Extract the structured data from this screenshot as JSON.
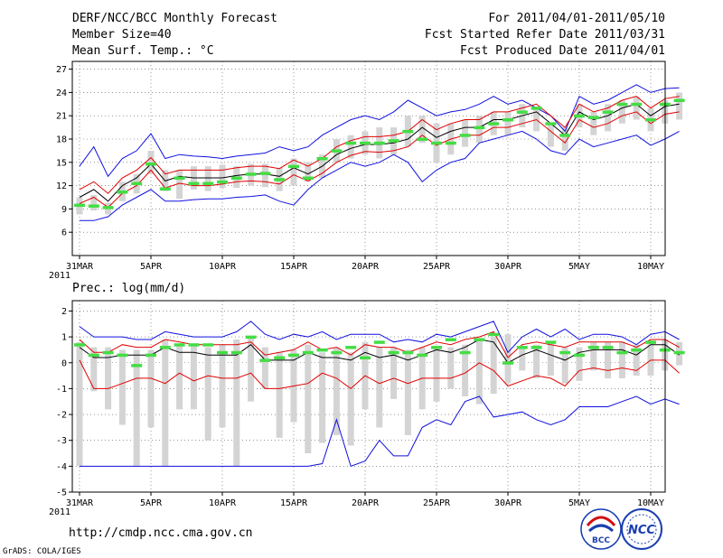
{
  "header": {
    "title": "DERF/NCC/BCC Monthly Forecast",
    "member": "Member Size=40",
    "variable": "Mean Surf. Temp.: °C",
    "period": "For 2011/04/01-2011/05/10",
    "refer": "Fcst Started Refer Date 2011/03/31",
    "produced": "Fcst Produced Date 2011/04/01"
  },
  "footer": {
    "url": "http://cmdp.ncc.cma.gov.cn",
    "grads": "GrADS: COLA/IGES",
    "logo1_text": "BCC",
    "logo2_text": "NCC"
  },
  "colors": {
    "envelope": "#1010e0",
    "spread": "#e00000",
    "mean": "#000000",
    "bar": "#d4d4d4",
    "marker": "#44dd44"
  },
  "chart_data": [
    {
      "type": "line",
      "title": "Mean Surf. Temp.: °C",
      "x_ticks": [
        {
          "i": 0,
          "label": "31MAR"
        },
        {
          "i": 5,
          "label": "5APR"
        },
        {
          "i": 10,
          "label": "10APR"
        },
        {
          "i": 15,
          "label": "15APR"
        },
        {
          "i": 20,
          "label": "20APR"
        },
        {
          "i": 25,
          "label": "25APR"
        },
        {
          "i": 30,
          "label": "30APR"
        },
        {
          "i": 35,
          "label": "5MAY"
        },
        {
          "i": 40,
          "label": "10MAY"
        }
      ],
      "year_label": "2011",
      "xlim": [
        0,
        40
      ],
      "ylim": [
        3,
        28
      ],
      "y_ticks": [
        6,
        9,
        12,
        15,
        18,
        21,
        24,
        27
      ],
      "series": {
        "max": [
          14.5,
          17.0,
          13.2,
          15.5,
          16.5,
          18.7,
          15.5,
          16.0,
          15.8,
          15.7,
          15.5,
          15.8,
          16.0,
          16.2,
          17.0,
          16.5,
          17.0,
          18.5,
          19.5,
          20.5,
          21.0,
          20.5,
          21.5,
          23.0,
          22.0,
          21.0,
          21.5,
          21.8,
          22.5,
          23.5,
          22.5,
          23.0,
          22.0,
          21.0,
          19.0,
          23.5,
          22.5,
          23.0,
          24.0,
          25.0,
          24.0,
          24.5,
          24.6
        ],
        "upper": [
          11.5,
          12.5,
          11.0,
          13.0,
          14.0,
          15.6,
          13.5,
          14.0,
          14.0,
          14.0,
          14.0,
          14.3,
          14.5,
          14.5,
          14.2,
          15.3,
          14.5,
          15.5,
          17.0,
          17.8,
          18.3,
          18.3,
          18.5,
          19.0,
          20.5,
          19.2,
          20.0,
          20.5,
          20.5,
          21.5,
          21.5,
          22.0,
          22.5,
          21.0,
          19.5,
          22.5,
          21.5,
          22.0,
          23.0,
          23.5,
          22.0,
          23.2,
          23.5
        ],
        "mean": [
          10.5,
          11.5,
          10.0,
          12.0,
          13.0,
          14.8,
          12.6,
          13.2,
          13.0,
          13.0,
          13.0,
          13.3,
          13.5,
          13.5,
          13.2,
          14.3,
          13.5,
          14.5,
          16.0,
          16.8,
          17.3,
          17.3,
          17.5,
          18.0,
          19.5,
          18.2,
          19.0,
          19.5,
          19.5,
          20.5,
          20.5,
          21.0,
          21.5,
          20.0,
          18.5,
          21.5,
          20.5,
          21.0,
          22.0,
          22.5,
          21.0,
          22.2,
          22.5
        ],
        "lower": [
          9.7,
          10.5,
          9.2,
          11.0,
          12.0,
          14.0,
          11.7,
          12.3,
          12.0,
          12.0,
          12.2,
          12.5,
          12.6,
          12.5,
          12.2,
          13.4,
          12.6,
          13.6,
          15.0,
          15.9,
          16.4,
          16.3,
          16.5,
          17.0,
          18.5,
          17.2,
          18.0,
          18.5,
          18.5,
          19.5,
          19.5,
          20.0,
          20.5,
          19.0,
          17.5,
          20.5,
          19.5,
          20.0,
          21.0,
          21.5,
          20.0,
          21.2,
          21.5
        ],
        "min": [
          7.5,
          7.5,
          8.0,
          9.5,
          10.5,
          11.5,
          10.0,
          10.0,
          10.2,
          10.3,
          10.3,
          10.5,
          10.6,
          10.8,
          10.0,
          9.5,
          11.5,
          13.0,
          14.0,
          15.0,
          14.5,
          15.0,
          16.0,
          15.0,
          12.5,
          14.0,
          15.0,
          15.5,
          17.5,
          18.0,
          18.5,
          19.0,
          18.0,
          16.5,
          16.0,
          18.0,
          17.0,
          17.5,
          18.0,
          18.5,
          17.2,
          18.0,
          19.0
        ]
      },
      "bars": [
        {
          "i": 0,
          "low": 8.3,
          "high": 10.5
        },
        {
          "i": 1,
          "low": 8.8,
          "high": 10.8
        },
        {
          "i": 2,
          "low": 8.3,
          "high": 9.8
        },
        {
          "i": 3,
          "low": 10.0,
          "high": 12.5
        },
        {
          "i": 4,
          "low": 11.0,
          "high": 13.5
        },
        {
          "i": 5,
          "low": 13.5,
          "high": 16.5
        },
        {
          "i": 6,
          "low": 11.3,
          "high": 14.0
        },
        {
          "i": 7,
          "low": 10.3,
          "high": 14.0
        },
        {
          "i": 8,
          "low": 11.5,
          "high": 14.5
        },
        {
          "i": 9,
          "low": 11.3,
          "high": 14.5
        },
        {
          "i": 10,
          "low": 11.7,
          "high": 14.7
        },
        {
          "i": 11,
          "low": 11.7,
          "high": 14.5
        },
        {
          "i": 12,
          "low": 12.0,
          "high": 14.8
        },
        {
          "i": 13,
          "low": 11.8,
          "high": 14.8
        },
        {
          "i": 14,
          "low": 11.3,
          "high": 14.3
        },
        {
          "i": 15,
          "low": 12.0,
          "high": 15.5
        },
        {
          "i": 16,
          "low": 12.5,
          "high": 15.0
        },
        {
          "i": 17,
          "low": 13.0,
          "high": 16.0
        },
        {
          "i": 18,
          "low": 15.0,
          "high": 18.0
        },
        {
          "i": 19,
          "low": 15.5,
          "high": 18.5
        },
        {
          "i": 20,
          "low": 16.0,
          "high": 19.0
        },
        {
          "i": 21,
          "low": 15.5,
          "high": 19.5
        },
        {
          "i": 22,
          "low": 16.0,
          "high": 19.5
        },
        {
          "i": 23,
          "low": 17.0,
          "high": 21.0
        },
        {
          "i": 24,
          "low": 17.5,
          "high": 21.0
        },
        {
          "i": 25,
          "low": 15.0,
          "high": 20.0
        },
        {
          "i": 26,
          "low": 16.0,
          "high": 20.0
        },
        {
          "i": 27,
          "low": 17.0,
          "high": 20.5
        },
        {
          "i": 28,
          "low": 17.5,
          "high": 21.0
        },
        {
          "i": 29,
          "low": 18.5,
          "high": 21.5
        },
        {
          "i": 30,
          "low": 18.5,
          "high": 21.5
        },
        {
          "i": 31,
          "low": 19.5,
          "high": 22.5
        },
        {
          "i": 32,
          "low": 19.0,
          "high": 22.0
        },
        {
          "i": 33,
          "low": 17.0,
          "high": 20.0
        },
        {
          "i": 34,
          "low": 16.5,
          "high": 19.5
        },
        {
          "i": 35,
          "low": 19.5,
          "high": 22.5
        },
        {
          "i": 36,
          "low": 18.5,
          "high": 21.5
        },
        {
          "i": 37,
          "low": 19.0,
          "high": 22.5
        },
        {
          "i": 38,
          "low": 20.0,
          "high": 23.0
        },
        {
          "i": 39,
          "low": 20.5,
          "high": 23.5
        },
        {
          "i": 40,
          "low": 19.0,
          "high": 22.0
        },
        {
          "i": 41,
          "low": 20.0,
          "high": 23.0
        },
        {
          "i": 42,
          "low": 20.5,
          "high": 24.0
        }
      ],
      "markers": [
        9.5,
        9.4,
        9.2,
        11.2,
        12.3,
        14.8,
        11.6,
        13.0,
        12.3,
        12.3,
        12.5,
        13.0,
        13.5,
        13.6,
        12.8,
        14.5,
        13.0,
        15.5,
        16.5,
        17.5,
        17.5,
        17.5,
        17.8,
        19.0,
        18.0,
        17.5,
        17.5,
        18.5,
        19.5,
        20.0,
        20.5,
        21.5,
        22.0,
        20.0,
        18.5,
        21.0,
        20.8,
        21.5,
        22.5,
        22.5,
        20.5,
        22.5,
        23.0
      ]
    },
    {
      "type": "line",
      "title": "Prec.: log(mm/d)",
      "x_ticks": [
        {
          "i": 0,
          "label": "31MAR"
        },
        {
          "i": 5,
          "label": "5APR"
        },
        {
          "i": 10,
          "label": "10APR"
        },
        {
          "i": 15,
          "label": "15APR"
        },
        {
          "i": 20,
          "label": "20APR"
        },
        {
          "i": 25,
          "label": "25APR"
        },
        {
          "i": 30,
          "label": "30APR"
        },
        {
          "i": 35,
          "label": "5MAY"
        },
        {
          "i": 40,
          "label": "10MAY"
        }
      ],
      "year_label": "2011",
      "xlim": [
        0,
        40
      ],
      "ylim": [
        -5,
        2.4
      ],
      "y_ticks": [
        -5,
        -4,
        -3,
        -2,
        -1,
        0,
        1,
        2
      ],
      "series": {
        "max": [
          1.4,
          1.0,
          1.0,
          1.0,
          0.9,
          0.9,
          1.2,
          1.1,
          1.0,
          1.0,
          1.0,
          1.2,
          1.6,
          1.1,
          0.9,
          1.1,
          1.0,
          1.2,
          0.9,
          1.1,
          1.1,
          1.1,
          0.8,
          0.9,
          0.8,
          1.1,
          1.0,
          1.2,
          1.4,
          1.6,
          0.4,
          1.0,
          1.3,
          1.0,
          1.3,
          0.9,
          1.1,
          1.1,
          1.0,
          0.7,
          1.1,
          1.2,
          0.9
        ],
        "upper": [
          0.9,
          0.4,
          0.4,
          0.7,
          0.6,
          0.6,
          0.9,
          0.8,
          0.7,
          0.7,
          0.7,
          0.7,
          0.8,
          0.3,
          0.4,
          0.5,
          0.8,
          0.5,
          0.6,
          0.3,
          0.7,
          0.6,
          0.6,
          0.4,
          0.6,
          0.8,
          0.7,
          0.9,
          1.0,
          1.2,
          0.2,
          0.7,
          0.8,
          0.7,
          0.6,
          0.8,
          0.8,
          0.8,
          0.8,
          0.6,
          0.9,
          0.9,
          0.6
        ],
        "mean": [
          0.6,
          0.2,
          0.2,
          0.3,
          0.3,
          0.3,
          0.6,
          0.4,
          0.4,
          0.3,
          0.3,
          0.3,
          0.7,
          0.1,
          0.1,
          0.1,
          0.4,
          0.2,
          0.2,
          0.1,
          0.4,
          0.2,
          0.3,
          0.1,
          0.3,
          0.5,
          0.4,
          0.6,
          0.9,
          0.8,
          0.0,
          0.3,
          0.5,
          0.3,
          0.1,
          0.4,
          0.5,
          0.5,
          0.5,
          0.3,
          0.7,
          0.7,
          0.3
        ],
        "lower": [
          0.1,
          -1.0,
          -1.0,
          -0.8,
          -0.6,
          -0.6,
          -0.8,
          -0.4,
          -0.7,
          -0.5,
          -0.6,
          -0.6,
          -0.4,
          -1.0,
          -1.0,
          -0.9,
          -0.8,
          -0.4,
          -0.6,
          -1.0,
          -0.5,
          -0.8,
          -0.6,
          -0.8,
          -0.6,
          -0.6,
          -0.6,
          -0.4,
          0.0,
          -0.3,
          -0.9,
          -0.7,
          -0.5,
          -0.6,
          -0.9,
          -0.3,
          -0.2,
          -0.3,
          -0.2,
          -0.3,
          0.1,
          0.1,
          -0.4
        ],
        "min": [
          -4.0,
          -4.0,
          -4.0,
          -4.0,
          -4.0,
          -4.0,
          -4.0,
          -4.0,
          -4.0,
          -4.0,
          -4.0,
          -4.0,
          -4.0,
          -4.0,
          -4.0,
          -4.0,
          -4.0,
          -3.9,
          -2.2,
          -4.0,
          -3.8,
          -3.0,
          -3.6,
          -3.6,
          -2.5,
          -2.2,
          -2.4,
          -1.5,
          -1.3,
          -2.1,
          -2.0,
          -1.9,
          -2.2,
          -2.4,
          -2.2,
          -1.7,
          -1.7,
          -1.7,
          -1.5,
          -1.3,
          -1.6,
          -1.4,
          -1.6
        ]
      },
      "bars": [
        {
          "i": 0,
          "low": -4.0,
          "high": 0.8
        },
        {
          "i": 1,
          "low": -1.1,
          "high": 0.6
        },
        {
          "i": 2,
          "low": -1.8,
          "high": 0.6
        },
        {
          "i": 3,
          "low": -2.4,
          "high": 0.5
        },
        {
          "i": 4,
          "low": -4.0,
          "high": 0.5
        },
        {
          "i": 5,
          "low": -2.5,
          "high": 0.5
        },
        {
          "i": 6,
          "low": -4.0,
          "high": 0.9
        },
        {
          "i": 7,
          "low": -1.8,
          "high": 0.7
        },
        {
          "i": 8,
          "low": -1.8,
          "high": 0.7
        },
        {
          "i": 9,
          "low": -3.0,
          "high": 0.6
        },
        {
          "i": 10,
          "low": -2.5,
          "high": 0.7
        },
        {
          "i": 11,
          "low": -4.0,
          "high": 0.9
        },
        {
          "i": 12,
          "low": -1.5,
          "high": 1.0
        },
        {
          "i": 13,
          "low": -1.0,
          "high": 0.6
        },
        {
          "i": 14,
          "low": -2.9,
          "high": 0.4
        },
        {
          "i": 15,
          "low": -2.3,
          "high": 0.5
        },
        {
          "i": 16,
          "low": -3.5,
          "high": 0.7
        },
        {
          "i": 17,
          "low": -3.1,
          "high": 0.4
        },
        {
          "i": 18,
          "low": -2.8,
          "high": 0.6
        },
        {
          "i": 19,
          "low": -3.2,
          "high": 0.4
        },
        {
          "i": 20,
          "low": -1.8,
          "high": 0.8
        },
        {
          "i": 21,
          "low": -2.5,
          "high": 0.6
        },
        {
          "i": 22,
          "low": -1.4,
          "high": 0.6
        },
        {
          "i": 23,
          "low": -2.8,
          "high": 0.5
        },
        {
          "i": 24,
          "low": -1.8,
          "high": 0.6
        },
        {
          "i": 25,
          "low": -1.5,
          "high": 0.6
        },
        {
          "i": 26,
          "low": -1.0,
          "high": 0.6
        },
        {
          "i": 27,
          "low": -1.3,
          "high": 0.7
        },
        {
          "i": 28,
          "low": -1.6,
          "high": 0.9
        },
        {
          "i": 29,
          "low": -1.2,
          "high": 1.0
        },
        {
          "i": 30,
          "low": -0.8,
          "high": 1.1
        },
        {
          "i": 31,
          "low": -0.3,
          "high": 0.6
        },
        {
          "i": 32,
          "low": -0.6,
          "high": 0.7
        },
        {
          "i": 33,
          "low": -0.5,
          "high": 0.8
        },
        {
          "i": 34,
          "low": -0.8,
          "high": 0.6
        },
        {
          "i": 35,
          "low": -0.7,
          "high": 0.6
        },
        {
          "i": 36,
          "low": -0.3,
          "high": 0.8
        },
        {
          "i": 37,
          "low": -0.6,
          "high": 0.8
        },
        {
          "i": 38,
          "low": -0.6,
          "high": 0.8
        },
        {
          "i": 39,
          "low": -0.5,
          "high": 0.7
        },
        {
          "i": 40,
          "low": -0.5,
          "high": 0.8
        },
        {
          "i": 41,
          "low": -0.3,
          "high": 0.9
        },
        {
          "i": 42,
          "low": -0.1,
          "high": 0.8
        }
      ],
      "markers": [
        0.7,
        0.3,
        0.4,
        0.3,
        -0.1,
        0.3,
        0.6,
        0.7,
        0.7,
        0.7,
        0.4,
        0.4,
        1.0,
        0.1,
        0.2,
        0.3,
        0.4,
        0.5,
        0.4,
        0.6,
        0.2,
        0.8,
        0.4,
        0.4,
        0.3,
        0.6,
        0.9,
        0.4,
        0.9,
        1.1,
        0.0,
        0.6,
        0.6,
        0.8,
        0.4,
        0.3,
        0.6,
        0.6,
        0.4,
        0.5,
        0.8,
        0.5,
        0.4
      ]
    }
  ]
}
